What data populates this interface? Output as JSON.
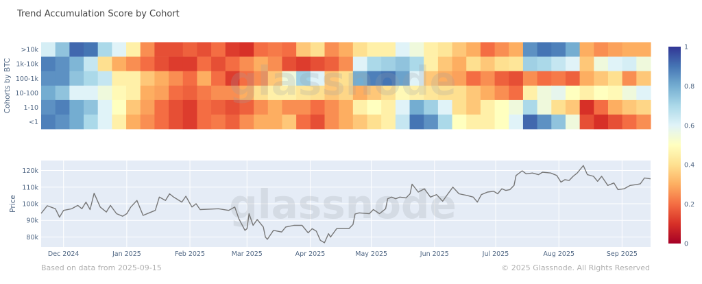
{
  "title": "Trend Accumulation Score by Cohort",
  "footer_left": "Based on data from 2025-09-15",
  "footer_right": "© 2025 Glassnode. All Rights Reserved",
  "watermark": "glassnode",
  "chart_data": [
    {
      "type": "heatmap",
      "ylabel": "Cohorts by BTC",
      "rows": [
        ">10k",
        "1k-10k",
        "100-1k",
        "10-100",
        "1-10",
        "<1"
      ],
      "x_range": [
        "2024-11-20",
        "2025-09-15"
      ],
      "colorscale": "RdYlBu",
      "colorbar": {
        "range": [
          0,
          1
        ],
        "ticks": [
          "0",
          "0.2",
          "0.4",
          "0.6",
          "0.8",
          "1"
        ]
      },
      "values": [
        [
          0.62,
          0.75,
          0.92,
          0.9,
          0.7,
          0.6,
          0.45,
          0.25,
          0.15,
          0.15,
          0.18,
          0.15,
          0.2,
          0.12,
          0.1,
          0.2,
          0.22,
          0.2,
          0.35,
          0.4,
          0.25,
          0.3,
          0.4,
          0.45,
          0.45,
          0.6,
          0.55,
          0.45,
          0.42,
          0.35,
          0.3,
          0.2,
          0.25,
          0.3,
          0.85,
          0.9,
          0.88,
          0.8,
          0.3,
          0.25,
          0.28,
          0.3,
          0.3
        ],
        [
          0.88,
          0.85,
          0.78,
          0.65,
          0.4,
          0.3,
          0.25,
          0.2,
          0.15,
          0.12,
          0.12,
          0.2,
          0.15,
          0.2,
          0.25,
          0.3,
          0.25,
          0.15,
          0.12,
          0.15,
          0.18,
          0.25,
          0.6,
          0.7,
          0.72,
          0.75,
          0.7,
          0.45,
          0.35,
          0.3,
          0.4,
          0.35,
          0.4,
          0.42,
          0.72,
          0.7,
          0.65,
          0.6,
          0.35,
          0.55,
          0.6,
          0.62,
          0.55
        ],
        [
          0.85,
          0.85,
          0.75,
          0.7,
          0.65,
          0.45,
          0.45,
          0.35,
          0.3,
          0.25,
          0.2,
          0.3,
          0.2,
          0.12,
          0.2,
          0.25,
          0.35,
          0.55,
          0.72,
          0.6,
          0.35,
          0.4,
          0.8,
          0.88,
          0.9,
          0.82,
          0.6,
          0.35,
          0.3,
          0.28,
          0.2,
          0.25,
          0.18,
          0.15,
          0.25,
          0.2,
          0.22,
          0.18,
          0.3,
          0.35,
          0.4,
          0.25,
          0.35
        ],
        [
          0.8,
          0.75,
          0.6,
          0.6,
          0.55,
          0.48,
          0.45,
          0.3,
          0.28,
          0.2,
          0.18,
          0.22,
          0.25,
          0.25,
          0.3,
          0.4,
          0.45,
          0.45,
          0.42,
          0.4,
          0.35,
          0.38,
          0.3,
          0.35,
          0.4,
          0.48,
          0.45,
          0.42,
          0.4,
          0.4,
          0.35,
          0.3,
          0.25,
          0.2,
          0.45,
          0.55,
          0.58,
          0.5,
          0.45,
          0.5,
          0.48,
          0.55,
          0.6
        ],
        [
          0.85,
          0.88,
          0.8,
          0.75,
          0.6,
          0.5,
          0.35,
          0.28,
          0.2,
          0.15,
          0.12,
          0.2,
          0.18,
          0.15,
          0.18,
          0.25,
          0.3,
          0.25,
          0.25,
          0.2,
          0.25,
          0.3,
          0.45,
          0.5,
          0.45,
          0.6,
          0.8,
          0.72,
          0.6,
          0.4,
          0.35,
          0.45,
          0.5,
          0.55,
          0.7,
          0.55,
          0.4,
          0.35,
          0.1,
          0.2,
          0.3,
          0.35,
          0.38
        ],
        [
          0.88,
          0.85,
          0.8,
          0.7,
          0.6,
          0.45,
          0.3,
          0.25,
          0.2,
          0.15,
          0.12,
          0.2,
          0.22,
          0.18,
          0.25,
          0.3,
          0.3,
          0.35,
          0.2,
          0.15,
          0.25,
          0.3,
          0.35,
          0.4,
          0.45,
          0.65,
          0.9,
          0.85,
          0.7,
          0.5,
          0.45,
          0.45,
          0.5,
          0.6,
          0.92,
          0.85,
          0.75,
          0.55,
          0.15,
          0.1,
          0.15,
          0.2,
          0.25
        ]
      ]
    },
    {
      "type": "line",
      "ylabel": "Price",
      "ylim": [
        74000,
        126000
      ],
      "xlim": [
        "2024-11-20",
        "2025-09-15"
      ],
      "yticks": [
        {
          "v": 80000,
          "label": "80k"
        },
        {
          "v": 90000,
          "label": "90k"
        },
        {
          "v": 100000,
          "label": "100k"
        },
        {
          "v": 110000,
          "label": "110k"
        },
        {
          "v": 120000,
          "label": "120k"
        }
      ],
      "xticks": [
        {
          "d": "2024-12-01",
          "label": "Dec 2024"
        },
        {
          "d": "2025-01-01",
          "label": "Jan 2025"
        },
        {
          "d": "2025-02-01",
          "label": "Feb 2025"
        },
        {
          "d": "2025-03-01",
          "label": "Mar 2025"
        },
        {
          "d": "2025-04-01",
          "label": "Apr 2025"
        },
        {
          "d": "2025-05-01",
          "label": "May 2025"
        },
        {
          "d": "2025-06-01",
          "label": "Jun 2025"
        },
        {
          "d": "2025-07-01",
          "label": "Jul 2025"
        },
        {
          "d": "2025-08-01",
          "label": "Aug 2025"
        },
        {
          "d": "2025-09-01",
          "label": "Sep 2025"
        }
      ],
      "grid": true,
      "line_color": "#777777",
      "background": "#e5ecf6",
      "points": [
        [
          "2024-11-20",
          94200
        ],
        [
          "2024-11-23",
          98800
        ],
        [
          "2024-11-27",
          97000
        ],
        [
          "2024-11-29",
          91900
        ],
        [
          "2024-12-01",
          96000
        ],
        [
          "2024-12-05",
          97000
        ],
        [
          "2024-12-08",
          99000
        ],
        [
          "2024-12-10",
          97000
        ],
        [
          "2024-12-12",
          101000
        ],
        [
          "2024-12-14",
          96500
        ],
        [
          "2024-12-16",
          106300
        ],
        [
          "2024-12-19",
          98000
        ],
        [
          "2024-12-22",
          95000
        ],
        [
          "2024-12-24",
          99000
        ],
        [
          "2024-12-27",
          94000
        ],
        [
          "2024-12-30",
          92500
        ],
        [
          "2025-01-01",
          94000
        ],
        [
          "2025-01-03",
          98000
        ],
        [
          "2025-01-06",
          102000
        ],
        [
          "2025-01-09",
          93000
        ],
        [
          "2025-01-12",
          94500
        ],
        [
          "2025-01-15",
          96000
        ],
        [
          "2025-01-17",
          104000
        ],
        [
          "2025-01-20",
          102000
        ],
        [
          "2025-01-22",
          106000
        ],
        [
          "2025-01-24",
          104000
        ],
        [
          "2025-01-28",
          101000
        ],
        [
          "2025-01-30",
          104500
        ],
        [
          "2025-02-02",
          98000
        ],
        [
          "2025-02-04",
          100000
        ],
        [
          "2025-02-06",
          96500
        ],
        [
          "2025-02-15",
          97000
        ],
        [
          "2025-02-20",
          96000
        ],
        [
          "2025-02-23",
          98000
        ],
        [
          "2025-02-25",
          91000
        ],
        [
          "2025-02-28",
          84000
        ],
        [
          "2025-03-01",
          85000
        ],
        [
          "2025-03-02",
          94000
        ],
        [
          "2025-03-04",
          87000
        ],
        [
          "2025-03-06",
          90500
        ],
        [
          "2025-03-09",
          86000
        ],
        [
          "2025-03-10",
          80000
        ],
        [
          "2025-03-11",
          78600
        ],
        [
          "2025-03-14",
          84000
        ],
        [
          "2025-03-18",
          83000
        ],
        [
          "2025-03-20",
          86000
        ],
        [
          "2025-03-24",
          87000
        ],
        [
          "2025-03-28",
          87000
        ],
        [
          "2025-03-31",
          82500
        ],
        [
          "2025-04-02",
          85000
        ],
        [
          "2025-04-04",
          83500
        ],
        [
          "2025-04-06",
          78000
        ],
        [
          "2025-04-08",
          76500
        ],
        [
          "2025-04-10",
          82000
        ],
        [
          "2025-04-11",
          80000
        ],
        [
          "2025-04-14",
          85000
        ],
        [
          "2025-04-20",
          85000
        ],
        [
          "2025-04-22",
          87500
        ],
        [
          "2025-04-23",
          93800
        ],
        [
          "2025-04-25",
          94500
        ],
        [
          "2025-04-30",
          94000
        ],
        [
          "2025-05-02",
          96500
        ],
        [
          "2025-05-05",
          94000
        ],
        [
          "2025-05-08",
          97000
        ],
        [
          "2025-05-09",
          103000
        ],
        [
          "2025-05-11",
          104000
        ],
        [
          "2025-05-13",
          103000
        ],
        [
          "2025-05-15",
          104000
        ],
        [
          "2025-05-18",
          103500
        ],
        [
          "2025-05-20",
          106000
        ],
        [
          "2025-05-21",
          111800
        ],
        [
          "2025-05-24",
          107000
        ],
        [
          "2025-05-27",
          109000
        ],
        [
          "2025-05-30",
          104000
        ],
        [
          "2025-06-02",
          105500
        ],
        [
          "2025-06-05",
          101500
        ],
        [
          "2025-06-07",
          105000
        ],
        [
          "2025-06-10",
          110000
        ],
        [
          "2025-06-13",
          106000
        ],
        [
          "2025-06-17",
          105000
        ],
        [
          "2025-06-20",
          104000
        ],
        [
          "2025-06-22",
          101000
        ],
        [
          "2025-06-24",
          105500
        ],
        [
          "2025-06-27",
          107000
        ],
        [
          "2025-06-30",
          107500
        ],
        [
          "2025-07-02",
          106000
        ],
        [
          "2025-07-04",
          109000
        ],
        [
          "2025-07-06",
          108000
        ],
        [
          "2025-07-08",
          108500
        ],
        [
          "2025-07-10",
          111000
        ],
        [
          "2025-07-11",
          117000
        ],
        [
          "2025-07-14",
          119800
        ],
        [
          "2025-07-16",
          118000
        ],
        [
          "2025-07-19",
          118500
        ],
        [
          "2025-07-22",
          117500
        ],
        [
          "2025-07-24",
          119000
        ],
        [
          "2025-07-28",
          118500
        ],
        [
          "2025-07-31",
          117000
        ],
        [
          "2025-08-02",
          113000
        ],
        [
          "2025-08-04",
          114500
        ],
        [
          "2025-08-06",
          114000
        ],
        [
          "2025-08-08",
          116500
        ],
        [
          "2025-08-10",
          118500
        ],
        [
          "2025-08-13",
          123000
        ],
        [
          "2025-08-15",
          117500
        ],
        [
          "2025-08-18",
          116500
        ],
        [
          "2025-08-20",
          113500
        ],
        [
          "2025-08-22",
          116500
        ],
        [
          "2025-08-25",
          111000
        ],
        [
          "2025-08-28",
          112500
        ],
        [
          "2025-08-30",
          108500
        ],
        [
          "2025-09-02",
          109000
        ],
        [
          "2025-09-05",
          111000
        ],
        [
          "2025-09-08",
          111500
        ],
        [
          "2025-09-10",
          112000
        ],
        [
          "2025-09-12",
          115500
        ],
        [
          "2025-09-15",
          115000
        ]
      ]
    }
  ]
}
